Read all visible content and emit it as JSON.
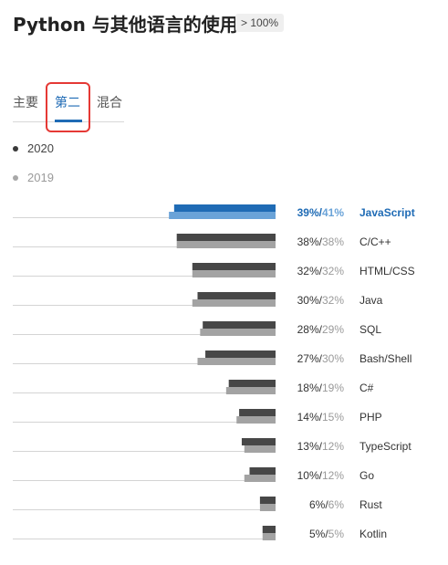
{
  "header": {
    "title": "Python 与其他语言的使用",
    "badge": "> 100%"
  },
  "tabs": [
    {
      "label": "主要",
      "active": false
    },
    {
      "label": "第二",
      "active": true
    },
    {
      "label": "混合",
      "active": false
    }
  ],
  "legend": [
    {
      "label": "2020",
      "color": "#3a3a3a"
    },
    {
      "label": "2019",
      "color": "#a8a8a8"
    }
  ],
  "colors": {
    "bar_2020": "#474747",
    "bar_2019": "#a3a3a3",
    "highlight_2020": "#1f6bb5",
    "highlight_2019": "#6aa3d8",
    "accent_text": "#1f6bb5",
    "tab_highlight_border": "#e53935"
  },
  "chart_data": {
    "type": "bar",
    "orientation": "horizontal",
    "categories": [
      "JavaScript",
      "C/C++",
      "HTML/CSS",
      "Java",
      "SQL",
      "Bash/Shell",
      "C#",
      "PHP",
      "TypeScript",
      "Go",
      "Rust",
      "Kotlin"
    ],
    "series": [
      {
        "name": "2020",
        "values": [
          39,
          38,
          32,
          30,
          28,
          27,
          18,
          14,
          13,
          10,
          6,
          5
        ]
      },
      {
        "name": "2019",
        "values": [
          41,
          38,
          32,
          32,
          29,
          30,
          19,
          15,
          12,
          12,
          6,
          5
        ]
      }
    ],
    "value_labels": [
      "39%",
      "38%",
      "32%",
      "30%",
      "28%",
      "27%",
      "18%",
      "14%",
      "13%",
      "10%",
      "6%",
      "5%"
    ],
    "value_labels_2019": [
      "41%",
      "38%",
      "32%",
      "32%",
      "29%",
      "30%",
      "19%",
      "15%",
      "12%",
      "12%",
      "6%",
      "5%"
    ],
    "highlighted_category": "JavaScript",
    "grid": false,
    "legend_position": "top-left"
  }
}
